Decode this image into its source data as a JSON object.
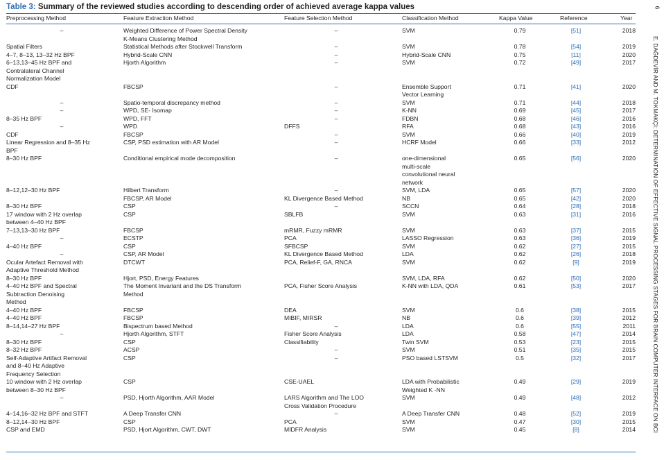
{
  "caption": {
    "label": "Table 3:",
    "text": "Summary of the reviewed studies according to descending order of achieved average kappa values"
  },
  "page_number": "6",
  "running_head": "E. DAĞDEVİR AND M. TOKMAKÇI: DETERMINATION OF EFFECTIVE SIGNAL PROCESSING STAGES FOR BRAIN COMPUTER INTERFACE ON BCI",
  "headers": {
    "preprocessing": "Preprocessing Method",
    "feature_extraction": "Feature Extraction Method",
    "feature_selection": "Feature Selection Method",
    "classification": "Classification Method",
    "kappa": "Kappa Value",
    "reference": "Reference",
    "year": "Year"
  },
  "rows": [
    {
      "pre": "–",
      "fe": "Weighted Difference of Power Spectral Density\n K-Means Clustering Method",
      "fs": "–",
      "cl": "SVM",
      "kv": "0.79",
      "ref": "[51]",
      "yr": "2018",
      "pre_c": true
    },
    {
      "pre": "Spatial Filters",
      "fe": "Statistical Methods after Stockwell Transform",
      "fs": "–",
      "cl": "SVM",
      "kv": "0.78",
      "ref": "[54]",
      "yr": "2019"
    },
    {
      "pre": "4–7, 8–13, 13–32 Hz BPF",
      "fe": "Hybrid-Scale CNN",
      "fs": "–",
      "cl": "Hybrid-Scale CNN",
      "kv": "0.75",
      "ref": "[11]",
      "yr": "2020"
    },
    {
      "pre": "6–13,13–45 Hz BPF and\n Contralateral Channel\n Normalization Model",
      "fe": "Hjorth Algorithm",
      "fs": "–",
      "cl": "SVM",
      "kv": "0.72",
      "ref": "[49]",
      "yr": "2017"
    },
    {
      "pre": "CDF",
      "fe": "FBCSP",
      "fs": "–",
      "cl": "Ensemble Support\n Vector Learning",
      "kv": "0.71",
      "ref": "[41]",
      "yr": "2020"
    },
    {
      "pre": "–",
      "fe": "Spatio-temporal discrepancy method",
      "fs": "–",
      "cl": "SVM",
      "kv": "0.71",
      "ref": "[44]",
      "yr": "2018",
      "pre_c": true
    },
    {
      "pre": "–",
      "fe": "WPD, SE- Isomap",
      "fs": "–",
      "cl": "K-NN",
      "kv": "0.69",
      "ref": "[45]",
      "yr": "2017",
      "pre_c": true
    },
    {
      "pre": "8–35 Hz BPF",
      "fe": "WPD, FFT",
      "fs": "–",
      "cl": "FDBN",
      "kv": "0.68",
      "ref": "[46]",
      "yr": "2016"
    },
    {
      "pre": "–",
      "fe": "WPD",
      "fs": "DFFS",
      "cl": "RFA",
      "kv": "0.68",
      "ref": "[43]",
      "yr": "2016",
      "pre_c": true,
      "fs_left": true
    },
    {
      "pre": "CDF",
      "fe": "FBCSP",
      "fs": "–",
      "cl": "SVM",
      "kv": "0.66",
      "ref": "[40]",
      "yr": "2019"
    },
    {
      "pre": "Linear Regression and 8–35 Hz\n BPF",
      "fe": "CSP, PSD estimation with AR Model",
      "fs": "–",
      "cl": "HCRF Model",
      "kv": "0.66",
      "ref": "[33]",
      "yr": "2012"
    },
    {
      "pre": "8–30 Hz BPF",
      "fe": "Conditional empirical mode decomposition",
      "fs": "–",
      "cl": "one-dimensional\n multi-scale\n convolutional neural\n network",
      "kv": "0.65",
      "ref": "[56]",
      "yr": "2020"
    },
    {
      "pre": "8–12,12–30 Hz BPF",
      "fe": "Hilbert Transform",
      "fs": "–",
      "cl": "SVM, LDA",
      "kv": "0.65",
      "ref": "[57]",
      "yr": "2020"
    },
    {
      "pre": "",
      "fe": "FBCSP, AR Model",
      "fs": "KL Divergence Based Method",
      "cl": "NB",
      "kv": "0.65",
      "ref": "[42]",
      "yr": "2020",
      "fs_left": true
    },
    {
      "pre": "8–30 Hz BPF",
      "fe": "CSP",
      "fs": "–",
      "cl": "SCCN",
      "kv": "0.64",
      "ref": "[28]",
      "yr": "2018"
    },
    {
      "pre": "17 window with 2 Hz overlap\n between 4–40 Hz BPF",
      "fe": "CSP",
      "fs": "SBLFB",
      "cl": "SVM",
      "kv": "0.63",
      "ref": "[31]",
      "yr": "2016",
      "fs_left": true
    },
    {
      "pre": "7–13,13–30 Hz BPF",
      "fe": "FBCSP",
      "fs": "mRMR, Fuzzy mRMR",
      "cl": "SVM",
      "kv": "0.63",
      "ref": "[37]",
      "yr": "2015",
      "fs_left": true
    },
    {
      "pre": "–",
      "fe": "ECSTP",
      "fs": "PCA",
      "cl": "LASSO Regression",
      "kv": "0.63",
      "ref": "[36]",
      "yr": "2019",
      "pre_c": true,
      "fs_left": true
    },
    {
      "pre": "4–40 Hz BPF",
      "fe": "CSP",
      "fs": "SFBCSP",
      "cl": "SVM",
      "kv": "0.62",
      "ref": "[27]",
      "yr": "2015",
      "fs_left": true
    },
    {
      "pre": "–",
      "fe": "CSP, AR Model",
      "fs": "KL Divergence Based Method",
      "cl": "LDA",
      "kv": "0.62",
      "ref": "[26]",
      "yr": "2018",
      "pre_c": true,
      "fs_left": true
    },
    {
      "pre": "Ocular Artefact Removal with\n Adaptive Threshold Method",
      "fe": "DTCWT",
      "fs": "PCA, Relief-F, GA, RNCA",
      "cl": "SVM",
      "kv": "0.62",
      "ref": "[9]",
      "yr": "2019",
      "fs_left": true
    },
    {
      "pre": "8–30 Hz BPF",
      "fe": "Hjort, PSD, Energy Features",
      "fs": "",
      "cl": "SVM, LDA, RFA",
      "kv": "0.62",
      "ref": "[50]",
      "yr": "2020"
    },
    {
      "pre": "4–40 Hz BPF and Spectral\n Subtraction Denoising\n Method",
      "fe": "The Moment Invariant and the DS Transform\n Method",
      "fs": "PCA, Fisher Score Analysis",
      "cl": "K-NN with LDA, QDA",
      "kv": "0.61",
      "ref": "[53]",
      "yr": "2017",
      "fs_left": true
    },
    {
      "pre": "4–40 Hz BPF",
      "fe": "FBCSP",
      "fs": "DEA",
      "cl": "SVM",
      "kv": "0.6",
      "ref": "[38]",
      "yr": "2015",
      "fs_left": true
    },
    {
      "pre": "4–40 Hz BPF",
      "fe": "FBCSP",
      "fs": "MIBIF, MIRSR",
      "cl": "NB",
      "kv": "0.6",
      "ref": "[39]",
      "yr": "2012",
      "fs_left": true
    },
    {
      "pre": "8–14,14–27 Hz BPF",
      "fe": "Bispectrum based Method",
      "fs": "–",
      "cl": "LDA",
      "kv": "0.6",
      "ref": "[55]",
      "yr": "2011"
    },
    {
      "pre": "–",
      "fe": "Hjorth Algorithm, STFT",
      "fs": "Fisher Score Analysis",
      "cl": "LDA",
      "kv": "0.58",
      "ref": "[47]",
      "yr": "2014",
      "pre_c": true,
      "fs_left": true
    },
    {
      "pre": "8–30 Hz BPF",
      "fe": "CSP",
      "fs": "Classifiability",
      "cl": "Twin SVM",
      "kv": "0.53",
      "ref": "[23]",
      "yr": "2015",
      "fs_left": true
    },
    {
      "pre": "8–32 Hz BPF",
      "fe": "ACSP",
      "fs": "–",
      "cl": "SVM",
      "kv": "0.51",
      "ref": "[35]",
      "yr": "2015"
    },
    {
      "pre": "Self-Adaptive Artifact Removal\n and 8–40 Hz Adaptive\n Frequency Selection",
      "fe": "CSP",
      "fs": "–",
      "cl": "PSO based LSTSVM",
      "kv": "0.5",
      "ref": "[32]",
      "yr": "2017"
    },
    {
      "pre": "10 window with 2 Hz overlap\n between 8–30 Hz BPF",
      "fe": "CSP",
      "fs": "CSE-UAEL",
      "cl": "LDA with Probabilistic\n Weighted K -NN",
      "kv": "0.49",
      "ref": "[29]",
      "yr": "2019",
      "fs_left": true
    },
    {
      "pre": "–",
      "fe": "PSD, Hjorth Algorithm, AAR Model",
      "fs": "LARS Algorithm and The LOO\n Cross Validation Procedure",
      "cl": "SVM",
      "kv": "0.49",
      "ref": "[48]",
      "yr": "2012",
      "pre_c": true,
      "fs_left": true
    },
    {
      "pre": "4–14,16–32 Hz BPF and STFT",
      "fe": "A Deep Transfer CNN",
      "fs": "–",
      "cl": "A Deep Transfer CNN",
      "kv": "0.48",
      "ref": "[52]",
      "yr": "2019"
    },
    {
      "pre": "8–12,14–30 Hz BPF",
      "fe": "CSP",
      "fs": "PCA",
      "cl": "SVM",
      "kv": "0.47",
      "ref": "[30]",
      "yr": "2015",
      "fs_left": true
    },
    {
      "pre": "CSP and EMD",
      "fe": "PSD, Hjort Algorithm, CWT, DWT",
      "fs": "MIDFR Analysis",
      "cl": "SVM",
      "kv": "0.45",
      "ref": "[8]",
      "yr": "2014",
      "fs_left": true
    }
  ]
}
